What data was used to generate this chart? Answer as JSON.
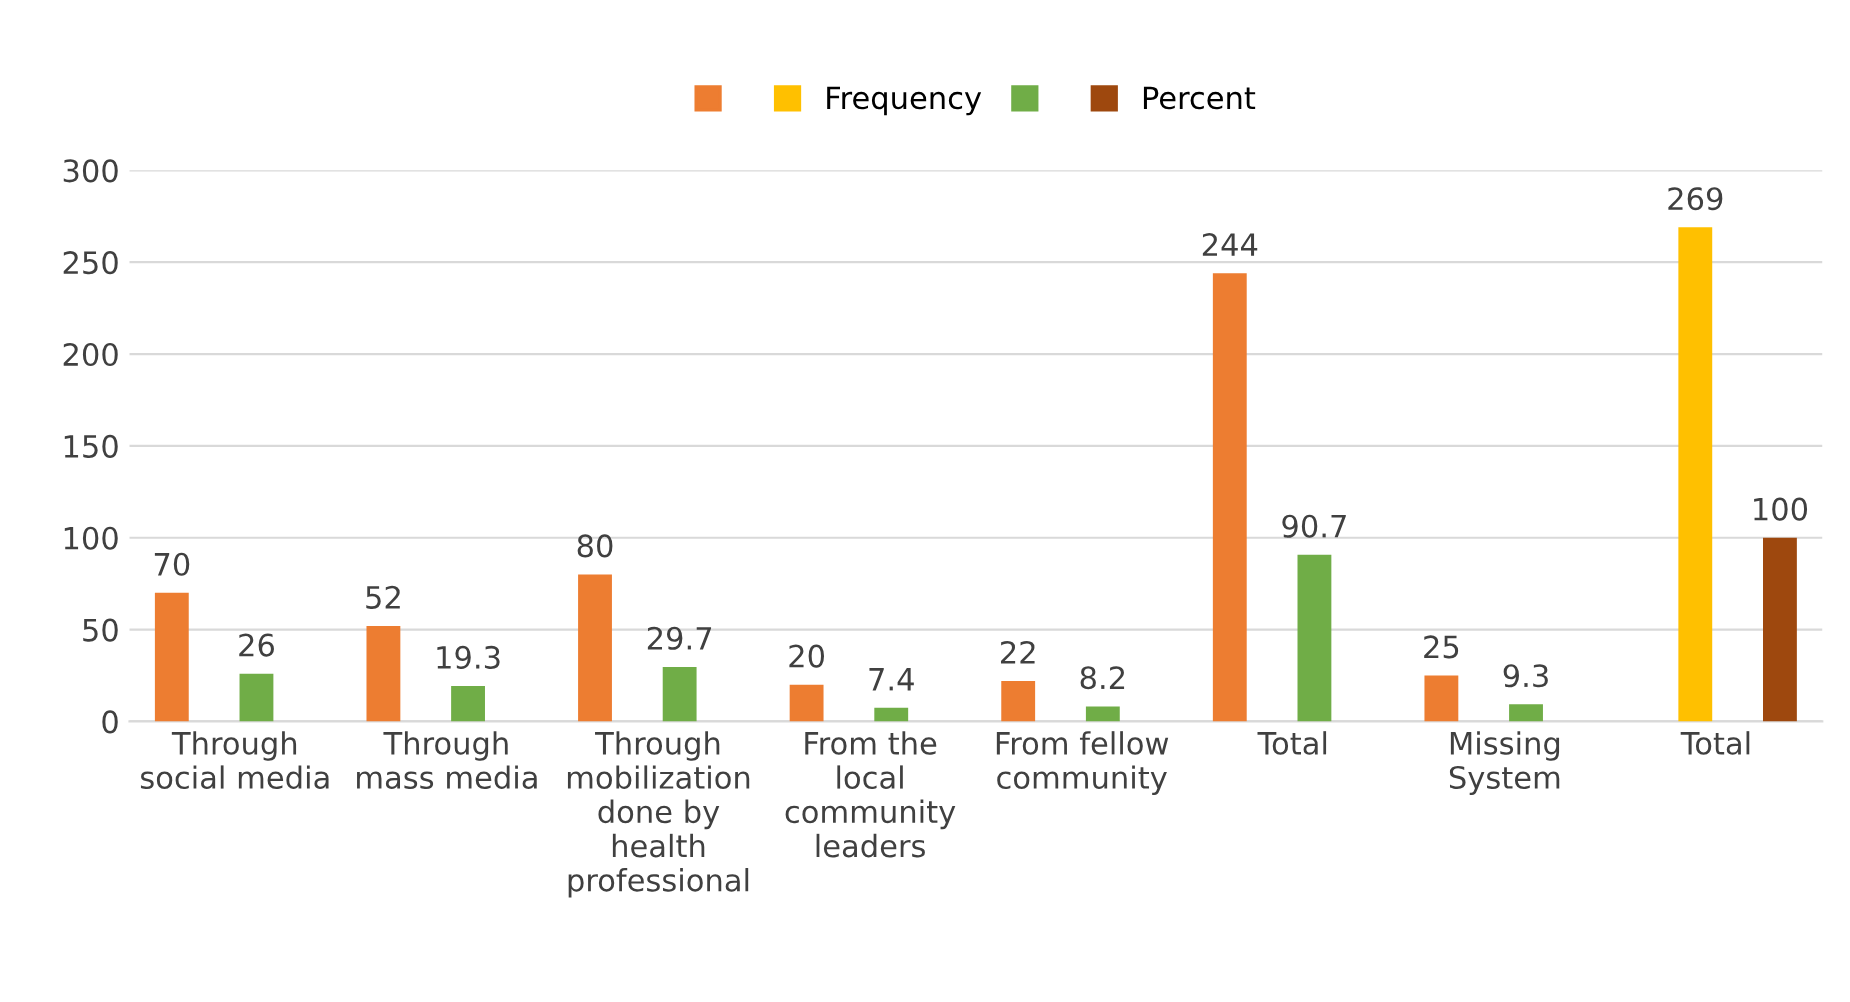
{
  "chart_data": {
    "type": "bar",
    "categories": [
      "Through\nsocial media",
      "Through\nmass media",
      "Through\nmobilization\ndone by\nhealth\nprofessional",
      "From the\nlocal\ncommunity\nleaders",
      "From fellow\ncommunity",
      "Total",
      "Missing\nSystem",
      "Total"
    ],
    "series": [
      {
        "color": "#ed7d31",
        "values": [
          70,
          52,
          80,
          20,
          22,
          244,
          25,
          null
        ]
      },
      {
        "name": "Frequency",
        "color": "#ffc000",
        "values": [
          null,
          null,
          null,
          null,
          null,
          null,
          null,
          269
        ]
      },
      {
        "color": "#70ad47",
        "values": [
          26,
          19.3,
          29.7,
          7.4,
          8.2,
          90.7,
          9.3,
          null
        ]
      },
      {
        "name": "Percent",
        "color": "#9e480e",
        "values": [
          null,
          null,
          null,
          null,
          null,
          null,
          null,
          100
        ]
      }
    ],
    "ylim": [
      0,
      300
    ],
    "yticks": [
      0,
      50,
      100,
      150,
      200,
      250,
      300
    ],
    "grid": "y",
    "legend": "top",
    "data_labels": true
  }
}
